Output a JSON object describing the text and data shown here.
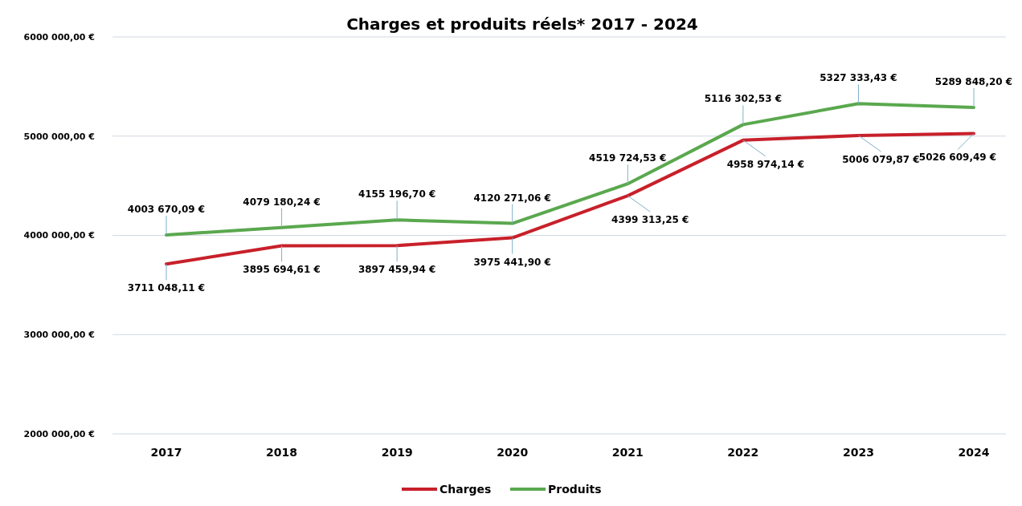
{
  "chart_data": {
    "type": "line",
    "title": "Charges et produits réels* 2017 - 2024",
    "categories": [
      "2017",
      "2018",
      "2019",
      "2020",
      "2021",
      "2022",
      "2023",
      "2024"
    ],
    "series": [
      {
        "name": "Charges",
        "color": "#c8202a",
        "values": [
          3711048.11,
          3895694.61,
          3897459.94,
          3975441.9,
          4399313.25,
          4958974.14,
          5006079.87,
          5026609.49
        ],
        "value_labels": [
          "3711 048,11 €",
          "3895 694,61 €",
          "3897 459,94 €",
          "3975 441,90 €",
          "4399 313,25 €",
          "4958 974,14 €",
          "5006 079,87 €",
          "5026 609,49 €"
        ]
      },
      {
        "name": "Produits",
        "color": "#5aa84e",
        "values": [
          4003670.09,
          4079180.24,
          4155196.7,
          4120271.06,
          4519724.53,
          5116302.53,
          5327333.43,
          5289848.2
        ],
        "value_labels": [
          "4003 670,09 €",
          "4079 180,24 €",
          "4155 196,70 €",
          "4120 271,06 €",
          "4519 724,53 €",
          "5116 302,53 €",
          "5327 333,43 €",
          "5289 848,20 €"
        ]
      }
    ],
    "ylim": [
      2000000,
      6000000
    ],
    "yticks": [
      {
        "value": 2000000,
        "label": "2000 000,00 €"
      },
      {
        "value": 3000000,
        "label": "3000 000,00 €"
      },
      {
        "value": 4000000,
        "label": "4000 000,00 €"
      },
      {
        "value": 5000000,
        "label": "5000 000,00 €"
      },
      {
        "value": 6000000,
        "label": "6000 000,00 €"
      }
    ],
    "grid": "y",
    "legend": "bottom",
    "marker": "none",
    "line_style": "solid"
  }
}
